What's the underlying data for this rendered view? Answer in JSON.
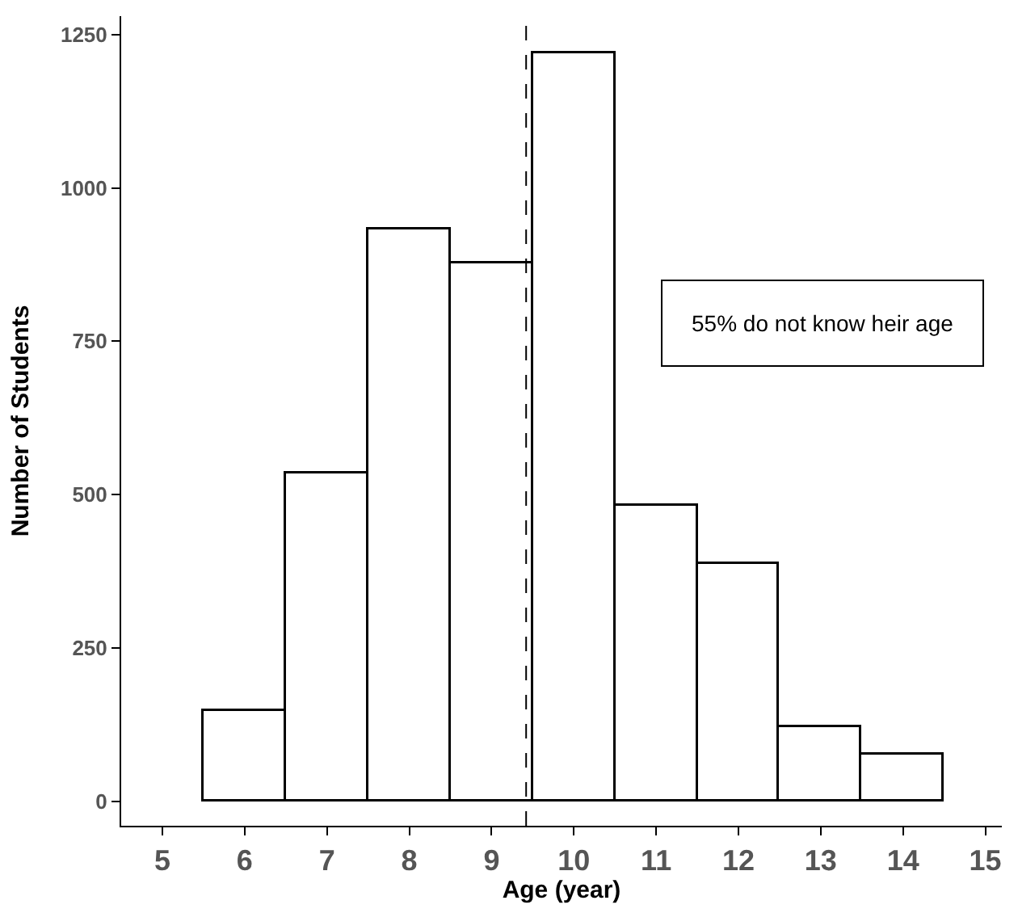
{
  "chart_data": {
    "type": "histogram",
    "xlabel": "Age (year)",
    "ylabel": "Number of Students",
    "bins": [
      5.5,
      6.5,
      7.5,
      8.5,
      9.5,
      10.5,
      11.5,
      12.5,
      13.5,
      14.5
    ],
    "values": [
      148,
      535,
      933,
      876,
      1220,
      481,
      387,
      120,
      77
    ],
    "color": "#ffffff",
    "xlim": [
      4.5,
      15.2
    ],
    "xticks": [
      5,
      6,
      7,
      8,
      9,
      10,
      11,
      12,
      13,
      14,
      15
    ],
    "ylim": [
      -40,
      1280
    ],
    "yticks": [
      0,
      250,
      500,
      750,
      1000,
      1250
    ],
    "ref_lines": [
      {
        "axis": "x",
        "value": 9.42,
        "line_style": "dashed",
        "color": "#000000"
      }
    ],
    "annotations": [
      "55% do not know heir age"
    ]
  }
}
